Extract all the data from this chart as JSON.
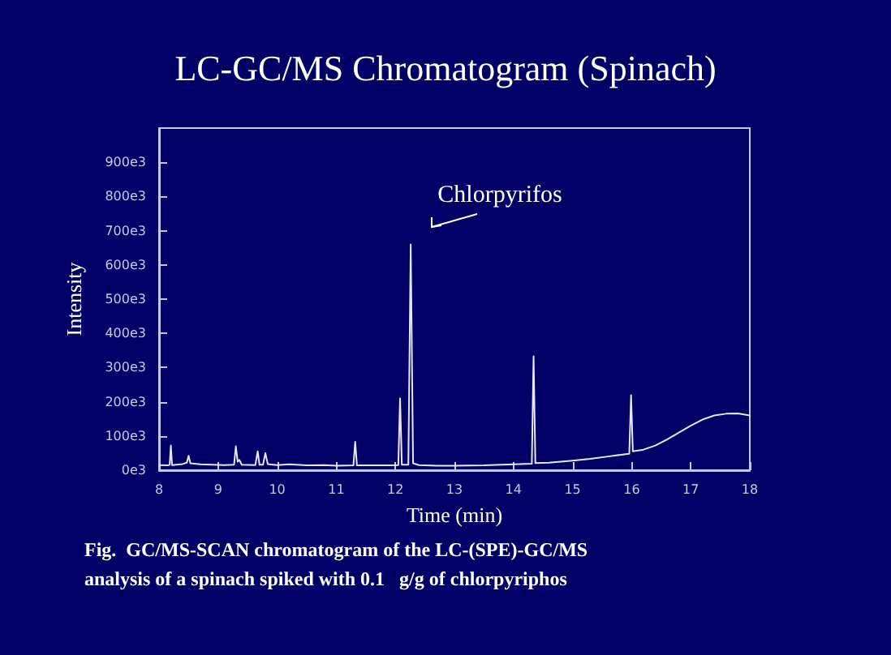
{
  "chart_data": {
    "type": "line",
    "title": "LC-GC/MS Chromatogram (Spinach)",
    "xlabel": "Time (min)",
    "ylabel": "Intensity",
    "annotations": [
      "Chlorpyrifos",
      "Fig.  GC/MS-SCAN chromatogram of the LC-(SPE)-GC/MS\nanalysis of a spinach spiked with 0.1   g/g of chlorpyriphos"
    ],
    "xlim": [
      8,
      18
    ],
    "xticks": [
      8,
      9,
      10,
      11,
      12,
      13,
      14,
      15,
      16,
      17,
      18
    ],
    "ylim": [
      0,
      1000000
    ],
    "yticks": [
      {
        "value": 0,
        "label": "0e3"
      },
      {
        "value": 100000,
        "label": "100e3"
      },
      {
        "value": 200000,
        "label": "200e3"
      },
      {
        "value": 300000,
        "label": "300e3"
      },
      {
        "value": 400000,
        "label": "400e3"
      },
      {
        "value": 500000,
        "label": "500e3"
      },
      {
        "value": 600000,
        "label": "600e3"
      },
      {
        "value": 700000,
        "label": "700e3"
      },
      {
        "value": 800000,
        "label": "800e3"
      },
      {
        "value": 900000,
        "label": "900e3"
      }
    ],
    "grid": false,
    "marker": "none",
    "line_style": "solid",
    "series": [
      {
        "color": "#e6e6ff",
        "x": [
          8.0,
          8.15,
          8.18,
          8.2,
          8.22,
          8.4,
          8.47,
          8.5,
          8.53,
          8.7,
          8.9,
          9.1,
          9.27,
          9.3,
          9.33,
          9.36,
          9.4,
          9.63,
          9.67,
          9.7,
          9.76,
          9.8,
          9.84,
          10.0,
          10.2,
          10.5,
          10.8,
          11.0,
          11.29,
          11.32,
          11.35,
          11.6,
          11.9,
          12.05,
          12.08,
          12.11,
          12.22,
          12.26,
          12.3,
          12.4,
          12.7,
          13.0,
          13.5,
          14.0,
          14.31,
          14.34,
          14.37,
          14.6,
          14.8,
          15.0,
          15.3,
          15.6,
          15.9,
          15.96,
          15.99,
          16.02,
          16.2,
          16.4,
          16.6,
          16.8,
          17.0,
          17.2,
          17.4,
          17.6,
          17.8,
          18.0
        ],
        "values": [
          15000,
          14000,
          16000,
          72000,
          15000,
          18000,
          22000,
          42000,
          20000,
          17000,
          16000,
          15000,
          16000,
          70000,
          25000,
          30000,
          16000,
          15000,
          55000,
          16000,
          16000,
          50000,
          18000,
          15000,
          17000,
          14000,
          15000,
          13000,
          14000,
          83000,
          14000,
          14000,
          14000,
          15000,
          210000,
          16000,
          16000,
          660000,
          20000,
          15000,
          13000,
          13000,
          14000,
          17000,
          19000,
          333000,
          21000,
          22000,
          25000,
          28000,
          33000,
          40000,
          47000,
          48000,
          219000,
          55000,
          60000,
          72000,
          90000,
          110000,
          130000,
          148000,
          160000,
          165000,
          166000,
          160000
        ]
      }
    ]
  }
}
